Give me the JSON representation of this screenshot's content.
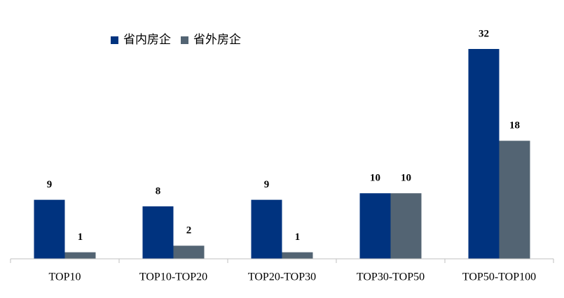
{
  "chart_data": {
    "type": "bar",
    "categories": [
      "TOP10",
      "TOP10-TOP20",
      "TOP20-TOP30",
      "TOP30-TOP50",
      "TOP50-TOP100"
    ],
    "series": [
      {
        "name": "省内房企",
        "color": "#00337f",
        "values": [
          9,
          8,
          9,
          10,
          32
        ]
      },
      {
        "name": "省外房企",
        "color": "#536473",
        "values": [
          1,
          2,
          1,
          10,
          18
        ]
      }
    ]
  }
}
